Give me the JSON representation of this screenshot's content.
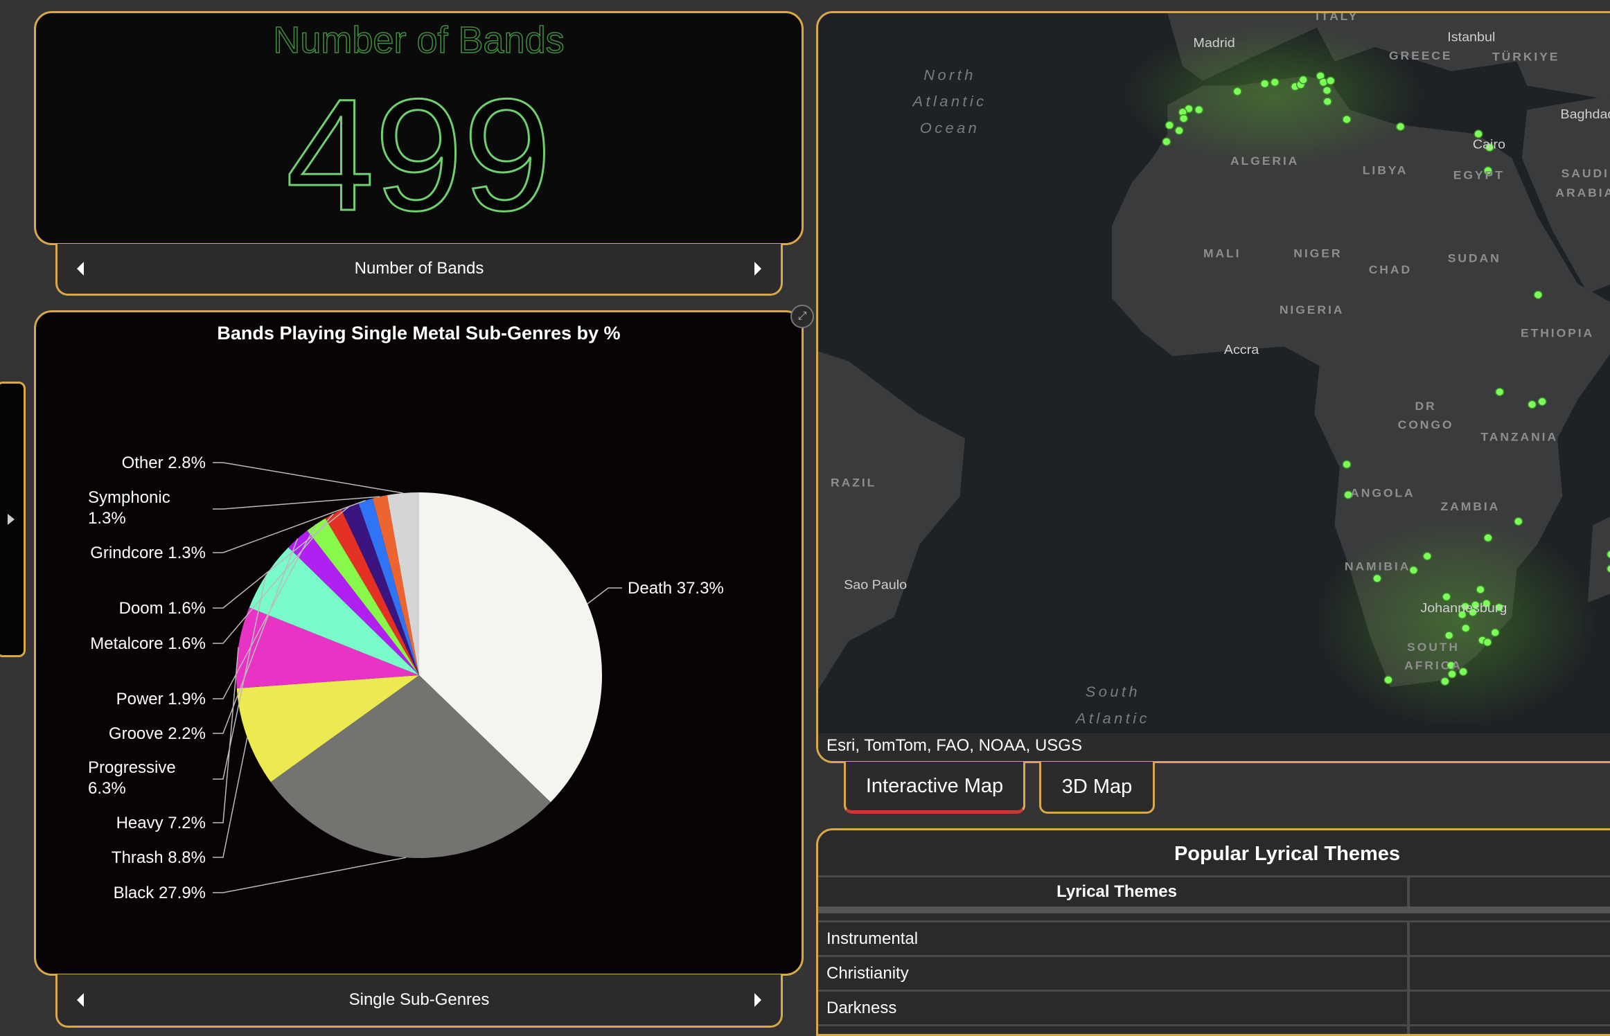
{
  "kpi": {
    "title": "Number of Bands",
    "value": "499",
    "nav_label": "Number of Bands"
  },
  "pie_nav_label": "Single Sub-Genres",
  "chart_data": {
    "type": "pie",
    "title": "Bands Playing Single Metal Sub-Genres by %",
    "slices": [
      {
        "name": "Death",
        "value": 37.3,
        "label": "Death 37.3%",
        "color": "#f5f5f0"
      },
      {
        "name": "Black",
        "value": 27.9,
        "label": "Black 27.9%",
        "color": "#737470"
      },
      {
        "name": "Thrash",
        "value": 8.8,
        "label": "Thrash 8.8%",
        "color": "#ecea50"
      },
      {
        "name": "Heavy",
        "value": 7.2,
        "label": "Heavy 7.2%",
        "color": "#e834c4"
      },
      {
        "name": "Progressive",
        "value": 6.3,
        "label": "Progressive 6.3%",
        "color": "#78fbc9"
      },
      {
        "name": "Groove",
        "value": 2.2,
        "label": "Groove 2.2%",
        "color": "#b020f0"
      },
      {
        "name": "Power",
        "value": 1.9,
        "label": "Power 1.9%",
        "color": "#88f94a"
      },
      {
        "name": "Metalcore",
        "value": 1.6,
        "label": "Metalcore 1.6%",
        "color": "#e33224"
      },
      {
        "name": "Doom",
        "value": 1.6,
        "label": "Doom 1.6%",
        "color": "#3a1580"
      },
      {
        "name": "Grindcore",
        "value": 1.3,
        "label": "Grindcore 1.3%",
        "color": "#2f74f5"
      },
      {
        "name": "Symphonic",
        "value": 1.3,
        "label": "Symphonic 1.3%",
        "color": "#ec6530"
      },
      {
        "name": "Other",
        "value": 2.8,
        "label": "Other 2.8%",
        "color": "#d5d5d5"
      }
    ]
  },
  "map": {
    "attribution": "Esri, TomTom, FAO, NOAA, USGS",
    "labels": {
      "madrid": "Madrid",
      "italy": "ITALY",
      "istanbul": "Istanbul",
      "greece": "GREECE",
      "turkiye": "TÜRKIYE",
      "baghdad": "Baghdad",
      "ocean_n1": "North",
      "ocean_n2": "Atlantic",
      "ocean_n3": "Ocean",
      "algeria": "ALGERIA",
      "libya": "LIBYA",
      "cairo": "Cairo",
      "egypt": "EGYPT",
      "saudi1": "SAUDI",
      "saudi2": "ARABIA",
      "mali": "MALI",
      "niger": "NIGER",
      "chad": "CHAD",
      "sudan": "SUDAN",
      "nigeria": "NIGERIA",
      "ethiopia": "ETHIOPIA",
      "accra": "Accra",
      "drc1": "DR",
      "drc2": "CONGO",
      "tanzania": "TANZANIA",
      "brazil": "RAZIL",
      "angola": "ANGOLA",
      "zambia": "ZAMBIA",
      "namibia": "NAMIBIA",
      "saopaulo": "Sao Paulo",
      "johannesburg": "Johannesburg",
      "sa1": "SOUTH",
      "sa2": "AFRICA",
      "ocean_s1": "South",
      "ocean_s2": "Atlantic"
    },
    "point_color": "#7dff5a"
  },
  "tabs": {
    "interactive": "Interactive Map",
    "three_d": "3D Map"
  },
  "table": {
    "title": "Popular Lyrical Themes",
    "column": "Lyrical Themes",
    "rows": [
      "Instrumental",
      "Christianity",
      "Darkness"
    ]
  }
}
